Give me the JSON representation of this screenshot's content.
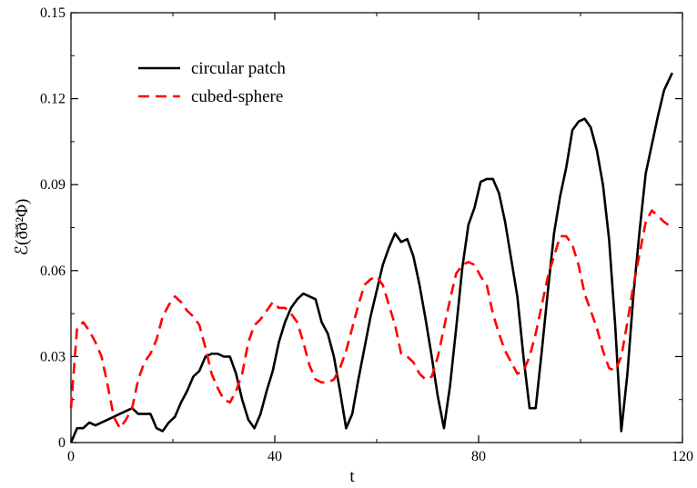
{
  "chart_data": {
    "type": "line",
    "title": "",
    "xlabel": "t",
    "ylabel": "ℰ(ð̄ð²Φ)",
    "xlim": [
      0,
      120
    ],
    "ylim": [
      0,
      0.15
    ],
    "x_ticks": [
      "0",
      "40",
      "80",
      "120"
    ],
    "y_ticks": [
      "0",
      "0.03",
      "0.06",
      "0.09",
      "0.12",
      "0.15"
    ],
    "grid": false,
    "legend_position": "top-left",
    "series": [
      {
        "name": "circular patch",
        "color": "#000000",
        "dash": "solid",
        "points": [
          [
            0,
            0.0
          ],
          [
            1.2,
            0.005
          ],
          [
            2.4,
            0.005
          ],
          [
            3.6,
            0.007
          ],
          [
            4.8,
            0.006
          ],
          [
            6,
            0.007
          ],
          [
            7.2,
            0.008
          ],
          [
            8.4,
            0.009
          ],
          [
            9.6,
            0.01
          ],
          [
            10.8,
            0.011
          ],
          [
            12,
            0.012
          ],
          [
            13.2,
            0.01
          ],
          [
            14.4,
            0.01
          ],
          [
            15.6,
            0.01
          ],
          [
            16.8,
            0.005
          ],
          [
            18,
            0.004
          ],
          [
            19.2,
            0.007
          ],
          [
            20.4,
            0.009
          ],
          [
            21.6,
            0.014
          ],
          [
            22.8,
            0.018
          ],
          [
            24,
            0.023
          ],
          [
            25.2,
            0.025
          ],
          [
            26.4,
            0.03
          ],
          [
            27.6,
            0.031
          ],
          [
            28.8,
            0.031
          ],
          [
            30,
            0.03
          ],
          [
            31.2,
            0.03
          ],
          [
            32.4,
            0.024
          ],
          [
            33.6,
            0.015
          ],
          [
            34.8,
            0.008
          ],
          [
            36,
            0.005
          ],
          [
            37.2,
            0.01
          ],
          [
            38.4,
            0.018
          ],
          [
            39.6,
            0.025
          ],
          [
            40.8,
            0.035
          ],
          [
            42,
            0.042
          ],
          [
            43.2,
            0.047
          ],
          [
            44.4,
            0.05
          ],
          [
            45.6,
            0.052
          ],
          [
            46.8,
            0.051
          ],
          [
            48,
            0.05
          ],
          [
            49.2,
            0.042
          ],
          [
            50.4,
            0.038
          ],
          [
            51.6,
            0.03
          ],
          [
            52.8,
            0.018
          ],
          [
            54,
            0.005
          ],
          [
            55.2,
            0.01
          ],
          [
            56.4,
            0.022
          ],
          [
            57.6,
            0.033
          ],
          [
            58.8,
            0.044
          ],
          [
            60,
            0.053
          ],
          [
            61.2,
            0.062
          ],
          [
            62.4,
            0.068
          ],
          [
            63.6,
            0.073
          ],
          [
            64.8,
            0.07
          ],
          [
            66,
            0.071
          ],
          [
            67.2,
            0.065
          ],
          [
            68.4,
            0.055
          ],
          [
            69.6,
            0.043
          ],
          [
            70.8,
            0.03
          ],
          [
            72,
            0.016
          ],
          [
            73.2,
            0.005
          ],
          [
            74.4,
            0.02
          ],
          [
            75.6,
            0.04
          ],
          [
            76.8,
            0.061
          ],
          [
            78,
            0.076
          ],
          [
            79.2,
            0.082
          ],
          [
            80.4,
            0.091
          ],
          [
            81.6,
            0.092
          ],
          [
            82.8,
            0.092
          ],
          [
            84,
            0.087
          ],
          [
            85.2,
            0.077
          ],
          [
            86.4,
            0.064
          ],
          [
            87.6,
            0.051
          ],
          [
            88.8,
            0.03
          ],
          [
            90,
            0.012
          ],
          [
            91.2,
            0.012
          ],
          [
            92.4,
            0.032
          ],
          [
            93.6,
            0.053
          ],
          [
            94.8,
            0.073
          ],
          [
            96,
            0.086
          ],
          [
            97.2,
            0.096
          ],
          [
            98.4,
            0.109
          ],
          [
            99.6,
            0.112
          ],
          [
            100.8,
            0.113
          ],
          [
            102,
            0.11
          ],
          [
            103.2,
            0.102
          ],
          [
            104.4,
            0.09
          ],
          [
            105.6,
            0.071
          ],
          [
            106.8,
            0.041
          ],
          [
            108,
            0.004
          ],
          [
            109.2,
            0.024
          ],
          [
            110.4,
            0.052
          ],
          [
            111.6,
            0.074
          ],
          [
            112.8,
            0.094
          ],
          [
            114,
            0.104
          ],
          [
            115.2,
            0.114
          ],
          [
            116.4,
            0.123
          ],
          [
            118,
            0.129
          ]
        ]
      },
      {
        "name": "cubed-sphere",
        "color": "#ff0000",
        "dash": "dashed",
        "points": [
          [
            0,
            0.012
          ],
          [
            1.2,
            0.04
          ],
          [
            2.4,
            0.042
          ],
          [
            3.6,
            0.039
          ],
          [
            4.8,
            0.035
          ],
          [
            6,
            0.03
          ],
          [
            7.2,
            0.02
          ],
          [
            8.4,
            0.009
          ],
          [
            9.6,
            0.005
          ],
          [
            10.8,
            0.008
          ],
          [
            12,
            0.012
          ],
          [
            13.2,
            0.022
          ],
          [
            14.4,
            0.028
          ],
          [
            15.6,
            0.031
          ],
          [
            16.8,
            0.036
          ],
          [
            18,
            0.044
          ],
          [
            19.2,
            0.048
          ],
          [
            20.4,
            0.051
          ],
          [
            21.6,
            0.049
          ],
          [
            22.8,
            0.046
          ],
          [
            24,
            0.044
          ],
          [
            25.2,
            0.041
          ],
          [
            26.4,
            0.033
          ],
          [
            27.6,
            0.024
          ],
          [
            28.8,
            0.019
          ],
          [
            30,
            0.015
          ],
          [
            31.2,
            0.014
          ],
          [
            32.4,
            0.018
          ],
          [
            33.6,
            0.024
          ],
          [
            34.8,
            0.035
          ],
          [
            36,
            0.041
          ],
          [
            37.2,
            0.043
          ],
          [
            38.4,
            0.046
          ],
          [
            39.6,
            0.049
          ],
          [
            40.8,
            0.047
          ],
          [
            42,
            0.047
          ],
          [
            43.2,
            0.045
          ],
          [
            44.4,
            0.042
          ],
          [
            45.6,
            0.035
          ],
          [
            46.8,
            0.027
          ],
          [
            48,
            0.022
          ],
          [
            49.2,
            0.021
          ],
          [
            50.4,
            0.021
          ],
          [
            51.6,
            0.022
          ],
          [
            52.8,
            0.026
          ],
          [
            54,
            0.032
          ],
          [
            55.2,
            0.04
          ],
          [
            56.4,
            0.048
          ],
          [
            57.6,
            0.055
          ],
          [
            58.8,
            0.057
          ],
          [
            60,
            0.058
          ],
          [
            61.2,
            0.055
          ],
          [
            62.4,
            0.048
          ],
          [
            63.6,
            0.041
          ],
          [
            64.8,
            0.031
          ],
          [
            66,
            0.03
          ],
          [
            67.2,
            0.028
          ],
          [
            68.4,
            0.024
          ],
          [
            69.6,
            0.022
          ],
          [
            70.8,
            0.023
          ],
          [
            72,
            0.03
          ],
          [
            73.2,
            0.04
          ],
          [
            74.4,
            0.05
          ],
          [
            75.6,
            0.059
          ],
          [
            76.8,
            0.062
          ],
          [
            78,
            0.063
          ],
          [
            79.2,
            0.062
          ],
          [
            80.4,
            0.058
          ],
          [
            81.6,
            0.055
          ],
          [
            82.8,
            0.045
          ],
          [
            84,
            0.038
          ],
          [
            85.2,
            0.032
          ],
          [
            86.4,
            0.028
          ],
          [
            87.6,
            0.024
          ],
          [
            88.8,
            0.025
          ],
          [
            90,
            0.03
          ],
          [
            91.2,
            0.038
          ],
          [
            92.4,
            0.048
          ],
          [
            93.6,
            0.058
          ],
          [
            94.8,
            0.065
          ],
          [
            96,
            0.072
          ],
          [
            97.2,
            0.072
          ],
          [
            98.4,
            0.069
          ],
          [
            99.6,
            0.062
          ],
          [
            100.8,
            0.052
          ],
          [
            102,
            0.046
          ],
          [
            103.2,
            0.04
          ],
          [
            104.4,
            0.032
          ],
          [
            105.6,
            0.026
          ],
          [
            106.8,
            0.025
          ],
          [
            108,
            0.03
          ],
          [
            109.2,
            0.042
          ],
          [
            110.4,
            0.055
          ],
          [
            111.6,
            0.066
          ],
          [
            112.8,
            0.077
          ],
          [
            114,
            0.081
          ],
          [
            115.2,
            0.079
          ],
          [
            116.4,
            0.077
          ],
          [
            118,
            0.075
          ]
        ]
      }
    ]
  }
}
